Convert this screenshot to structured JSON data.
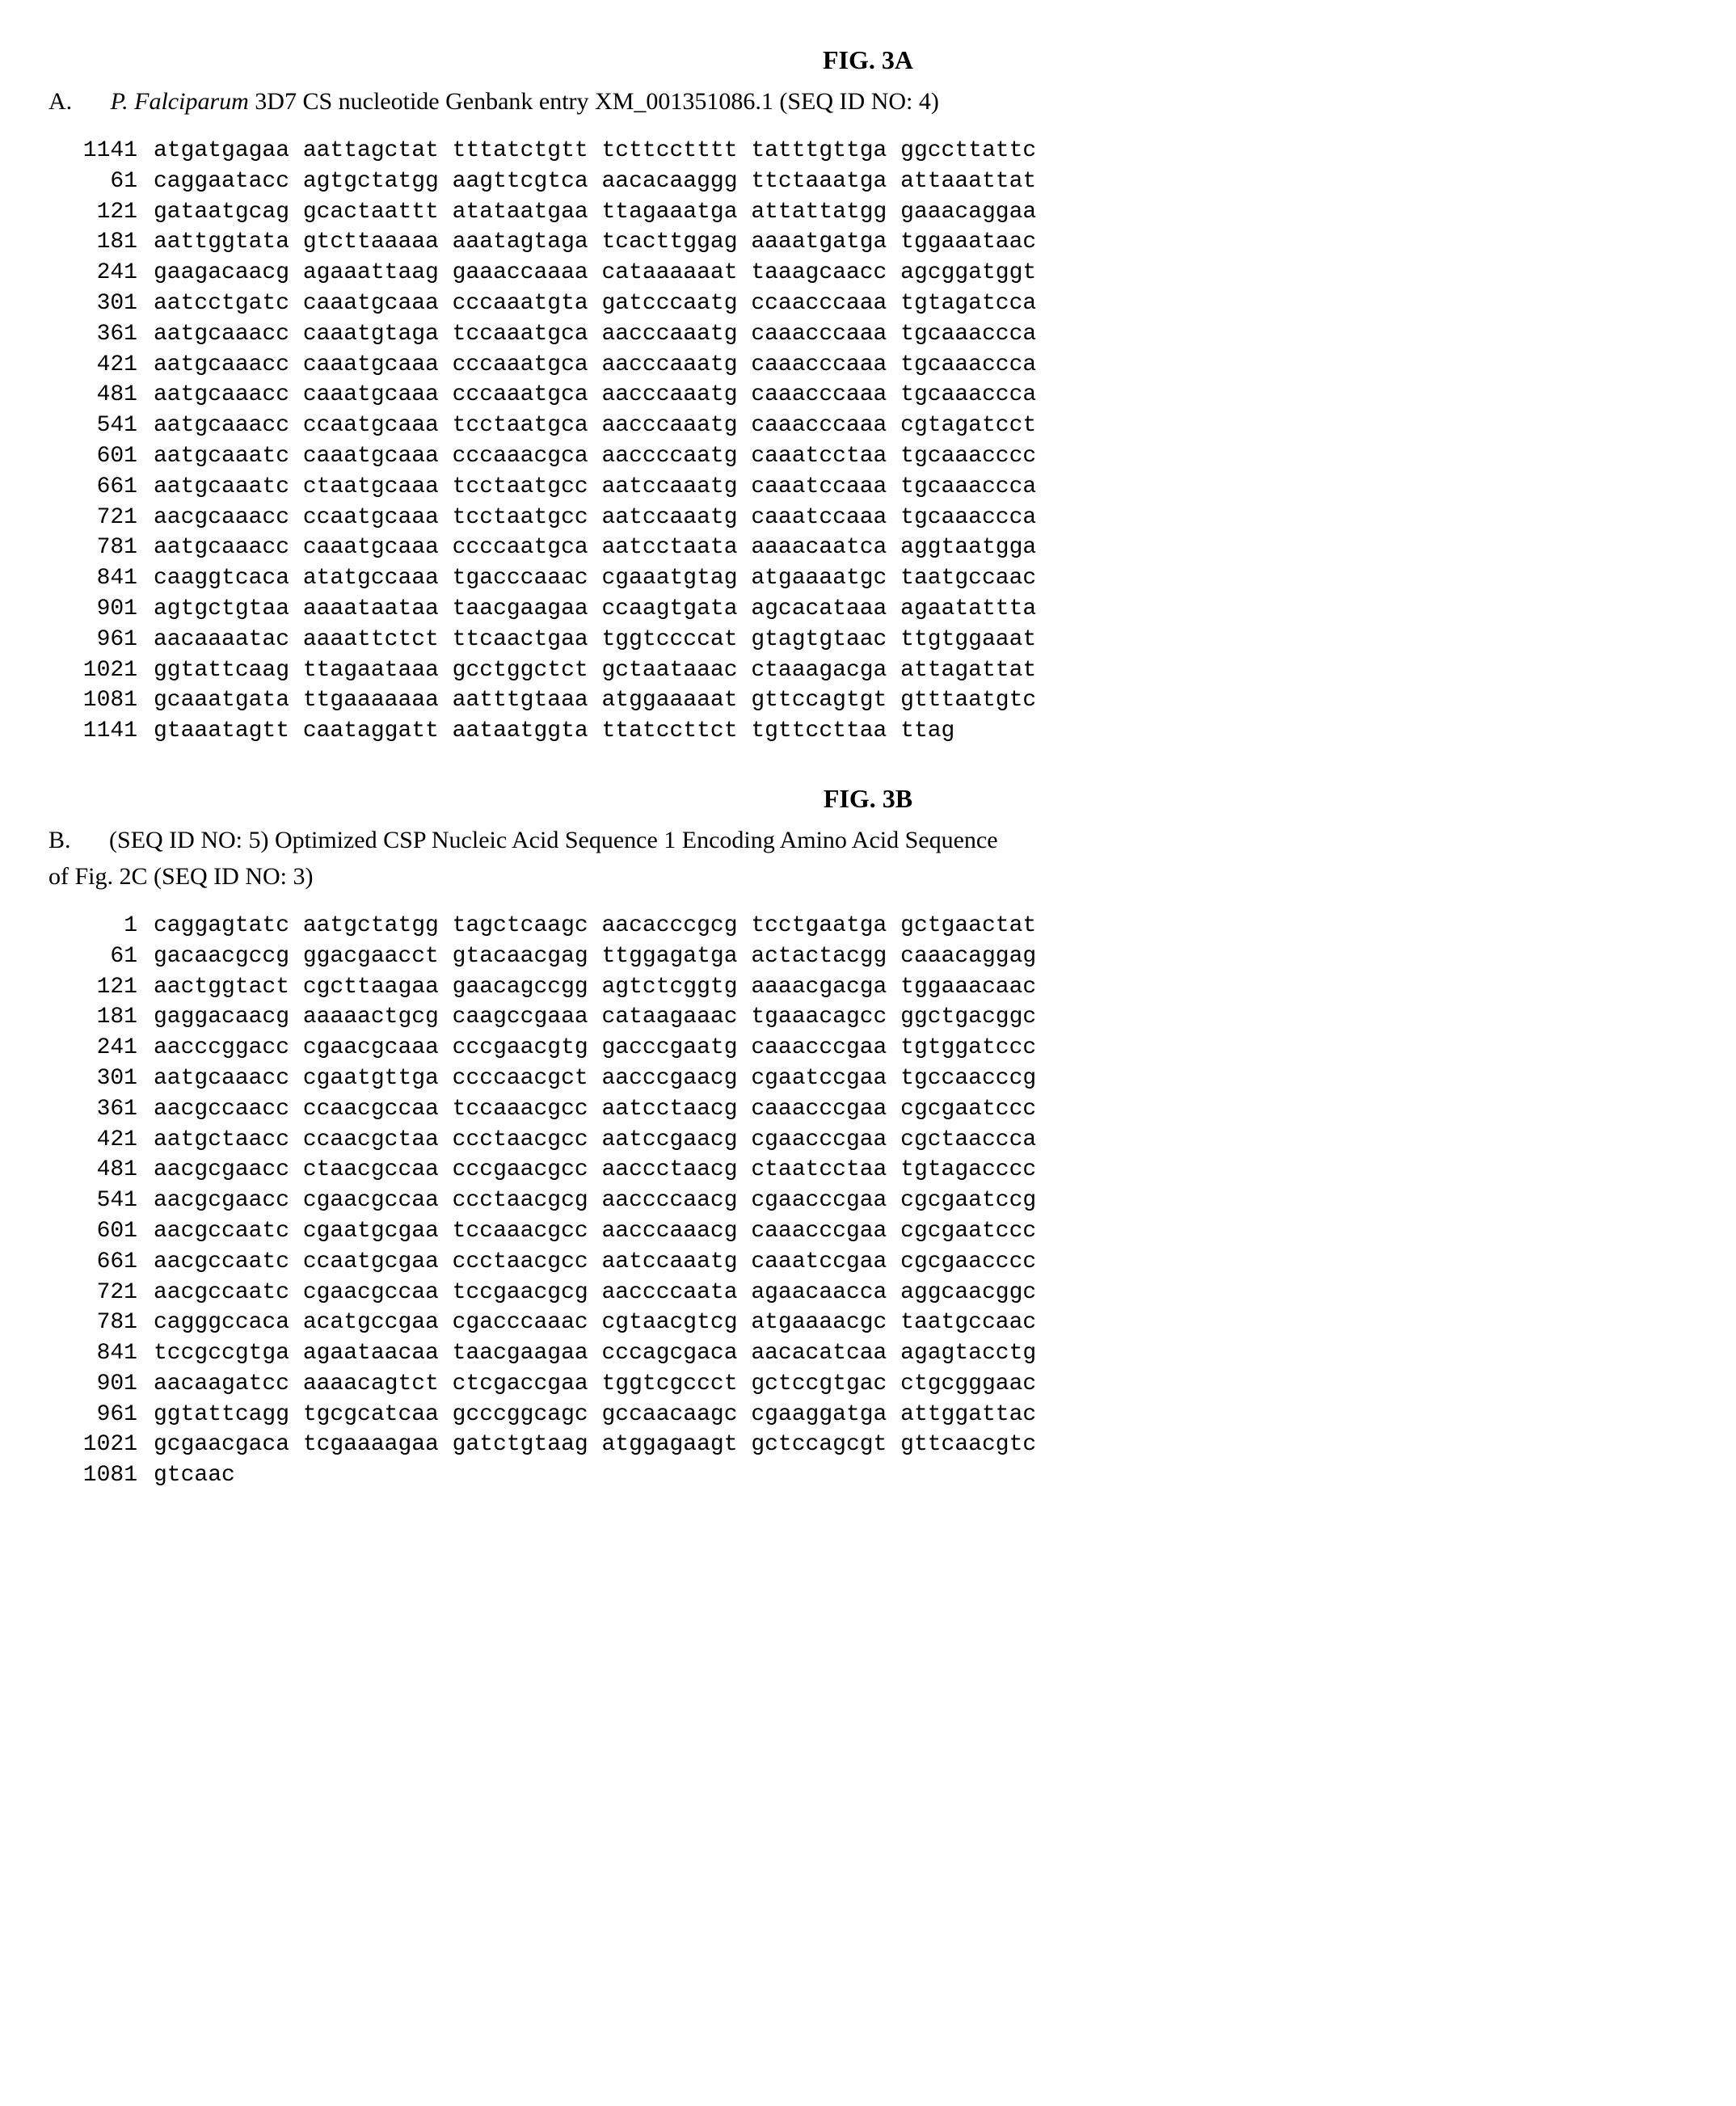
{
  "figA": {
    "label": "FIG. 3A",
    "headerPrefix": "A.",
    "speciesItalic": "P. Falciparum",
    "headerRest": " 3D7 CS nucleotide Genbank entry XM_001351086.1 (SEQ ID NO: 4)",
    "rows": [
      {
        "pos": "1141",
        "seq": "atgatgagaa aattagctat tttatctgtt tcttcctttt tatttgttga ggccttattc"
      },
      {
        "pos": "61",
        "seq": "caggaatacc agtgctatgg aagttcgtca aacacaaggg ttctaaatga attaaattat"
      },
      {
        "pos": "121",
        "seq": "gataatgcag gcactaattt atataatgaa ttagaaatga attattatgg gaaacaggaa"
      },
      {
        "pos": "181",
        "seq": "aattggtata gtcttaaaaa aaatagtaga tcacttggag aaaatgatga tggaaataac"
      },
      {
        "pos": "241",
        "seq": "gaagacaacg agaaattaag gaaaccaaaa cataaaaaat taaagcaacc agcggatggt"
      },
      {
        "pos": "301",
        "seq": "aatcctgatc caaatgcaaa cccaaatgta gatcccaatg ccaacccaaa tgtagatcca"
      },
      {
        "pos": "361",
        "seq": "aatgcaaacc caaatgtaga tccaaatgca aacccaaatg caaacccaaa tgcaaaccca"
      },
      {
        "pos": "421",
        "seq": "aatgcaaacc caaatgcaaa cccaaatgca aacccaaatg caaacccaaa tgcaaaccca"
      },
      {
        "pos": "481",
        "seq": "aatgcaaacc caaatgcaaa cccaaatgca aacccaaatg caaacccaaa tgcaaaccca"
      },
      {
        "pos": "541",
        "seq": "aatgcaaacc ccaatgcaaa tcctaatgca aacccaaatg caaacccaaa cgtagatcct"
      },
      {
        "pos": "601",
        "seq": "aatgcaaatc caaatgcaaa cccaaacgca aaccccaatg caaatcctaa tgcaaacccc"
      },
      {
        "pos": "661",
        "seq": "aatgcaaatc ctaatgcaaa tcctaatgcc aatccaaatg caaatccaaa tgcaaaccca"
      },
      {
        "pos": "721",
        "seq": "aacgcaaacc ccaatgcaaa tcctaatgcc aatccaaatg caaatccaaa tgcaaaccca"
      },
      {
        "pos": "781",
        "seq": "aatgcaaacc caaatgcaaa ccccaatgca aatcctaata aaaacaatca aggtaatgga"
      },
      {
        "pos": "841",
        "seq": "caaggtcaca atatgccaaa tgacccaaac cgaaatgtag atgaaaatgc taatgccaac"
      },
      {
        "pos": "901",
        "seq": "agtgctgtaa aaaataataa taacgaagaa ccaagtgata agcacataaa agaatattta"
      },
      {
        "pos": "961",
        "seq": "aacaaaatac aaaattctct ttcaactgaa tggtccccat gtagtgtaac ttgtggaaat"
      },
      {
        "pos": "1021",
        "seq": "ggtattcaag ttagaataaa gcctggctct gctaataaac ctaaagacga attagattat"
      },
      {
        "pos": "1081",
        "seq": "gcaaatgata ttgaaaaaaa aatttgtaaa atggaaaaat gttccagtgt gtttaatgtc"
      },
      {
        "pos": "1141",
        "seq": "gtaaatagtt caataggatt aataatggta ttatccttct tgttccttaa ttag"
      }
    ]
  },
  "figB": {
    "label": "FIG. 3B",
    "headerPrefix": "B.",
    "headerLine1": "(SEQ ID NO: 5) Optimized CSP Nucleic Acid Sequence 1 Encoding Amino Acid Sequence",
    "headerLine2": "of Fig. 2C (SEQ ID NO: 3)",
    "rows": [
      {
        "pos": "1",
        "seq": "caggagtatc aatgctatgg tagctcaagc aacacccgcg tcctgaatga gctgaactat"
      },
      {
        "pos": "61",
        "seq": "gacaacgccg ggacgaacct gtacaacgag ttggagatga actactacgg caaacaggag"
      },
      {
        "pos": "121",
        "seq": "aactggtact cgcttaagaa gaacagccgg agtctcggtg aaaacgacga tggaaacaac"
      },
      {
        "pos": "181",
        "seq": "gaggacaacg aaaaactgcg caagccgaaa cataagaaac tgaaacagcc ggctgacggc"
      },
      {
        "pos": "241",
        "seq": "aacccggacc cgaacgcaaa cccgaacgtg gacccgaatg caaacccgaa tgtggatccc"
      },
      {
        "pos": "301",
        "seq": "aatgcaaacc cgaatgttga ccccaacgct aacccgaacg cgaatccgaa tgccaacccg"
      },
      {
        "pos": "361",
        "seq": "aacgccaacc ccaacgccaa tccaaacgcc aatcctaacg caaacccgaa cgcgaatccc"
      },
      {
        "pos": "421",
        "seq": "aatgctaacc ccaacgctaa ccctaacgcc aatccgaacg cgaacccgaa cgctaaccca"
      },
      {
        "pos": "481",
        "seq": "aacgcgaacc ctaacgccaa cccgaacgcc aaccctaacg ctaatcctaa tgtagacccc"
      },
      {
        "pos": "541",
        "seq": "aacgcgaacc cgaacgccaa ccctaacgcg aaccccaacg cgaacccgaa cgcgaatccg"
      },
      {
        "pos": "601",
        "seq": "aacgccaatc cgaatgcgaa tccaaacgcc aacccaaacg caaacccgaa cgcgaatccc"
      },
      {
        "pos": "661",
        "seq": "aacgccaatc ccaatgcgaa ccctaacgcc aatccaaatg caaatccgaa cgcgaacccc"
      },
      {
        "pos": "721",
        "seq": "aacgccaatc cgaacgccaa tccgaacgcg aaccccaata agaacaacca aggcaacggc"
      },
      {
        "pos": "781",
        "seq": "cagggccaca acatgccgaa cgacccaaac cgtaacgtcg atgaaaacgc taatgccaac"
      },
      {
        "pos": "841",
        "seq": "tccgccgtga agaataacaa taacgaagaa cccagcgaca aacacatcaa agagtacctg"
      },
      {
        "pos": "901",
        "seq": "aacaagatcc aaaacagtct ctcgaccgaa tggtcgccct gctccgtgac ctgcgggaac"
      },
      {
        "pos": "961",
        "seq": "ggtattcagg tgcgcatcaa gcccggcagc gccaacaagc cgaaggatga attggattac"
      },
      {
        "pos": "1021",
        "seq": "gcgaacgaca tcgaaaagaa gatctgtaag atggagaagt gctccagcgt gttcaacgtc"
      },
      {
        "pos": "1081",
        "seq": "gtcaac"
      }
    ]
  }
}
